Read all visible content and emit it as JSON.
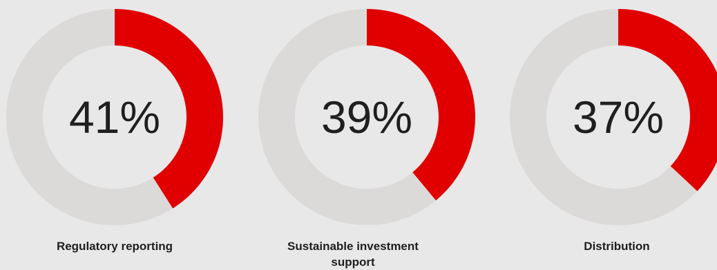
{
  "chart_data": {
    "type": "pie",
    "variant": "donut",
    "items": [
      {
        "label": "Regulatory reporting",
        "value": 41,
        "display": "41%"
      },
      {
        "label": "Sustainable investment support",
        "value": 39,
        "display": "39%"
      },
      {
        "label": "Distribution",
        "value": 37,
        "display": "37%"
      }
    ],
    "max": 100,
    "colors": {
      "filled": "#e10000",
      "remainder": "#dcdad9",
      "background": "#e8e8e9",
      "text": "#1f1f1f"
    }
  }
}
